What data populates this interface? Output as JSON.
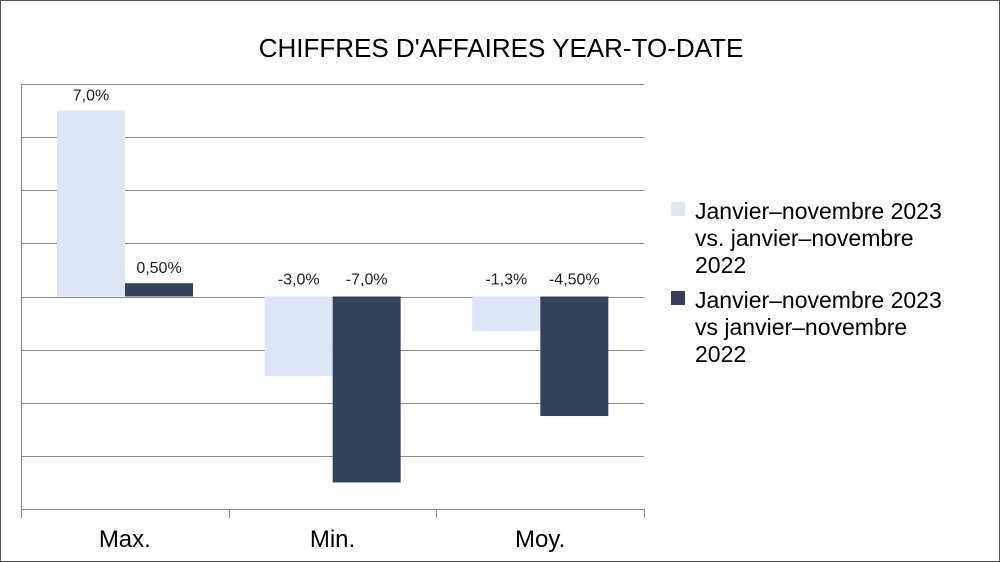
{
  "chart_data": {
    "type": "bar",
    "title": "CHIFFRES D'AFFAIRES YEAR-TO-DATE",
    "xlabel": "",
    "ylabel": "",
    "categories": [
      "Max.",
      "Min.",
      "Moy."
    ],
    "series": [
      {
        "name": "Janvier–novembre 2023 vs. janvier–novembre 2022",
        "color": "#dde6f3",
        "values": [
          7.0,
          -3.0,
          -1.3
        ],
        "labels": [
          "7,0%",
          "-3,0%",
          "-1,3%"
        ]
      },
      {
        "name": "Janvier–novembre 2023 vs janvier–novembre 2022",
        "color": "#34405c",
        "values": [
          0.5,
          -7.0,
          -4.5
        ],
        "labels": [
          "0,50%",
          "-7,0%",
          "-4,50%"
        ]
      }
    ],
    "ylim": [
      -8,
      8
    ],
    "ytick_step": 2,
    "y_tick_labels_shown": false,
    "grid": true,
    "legend_position": "right"
  }
}
